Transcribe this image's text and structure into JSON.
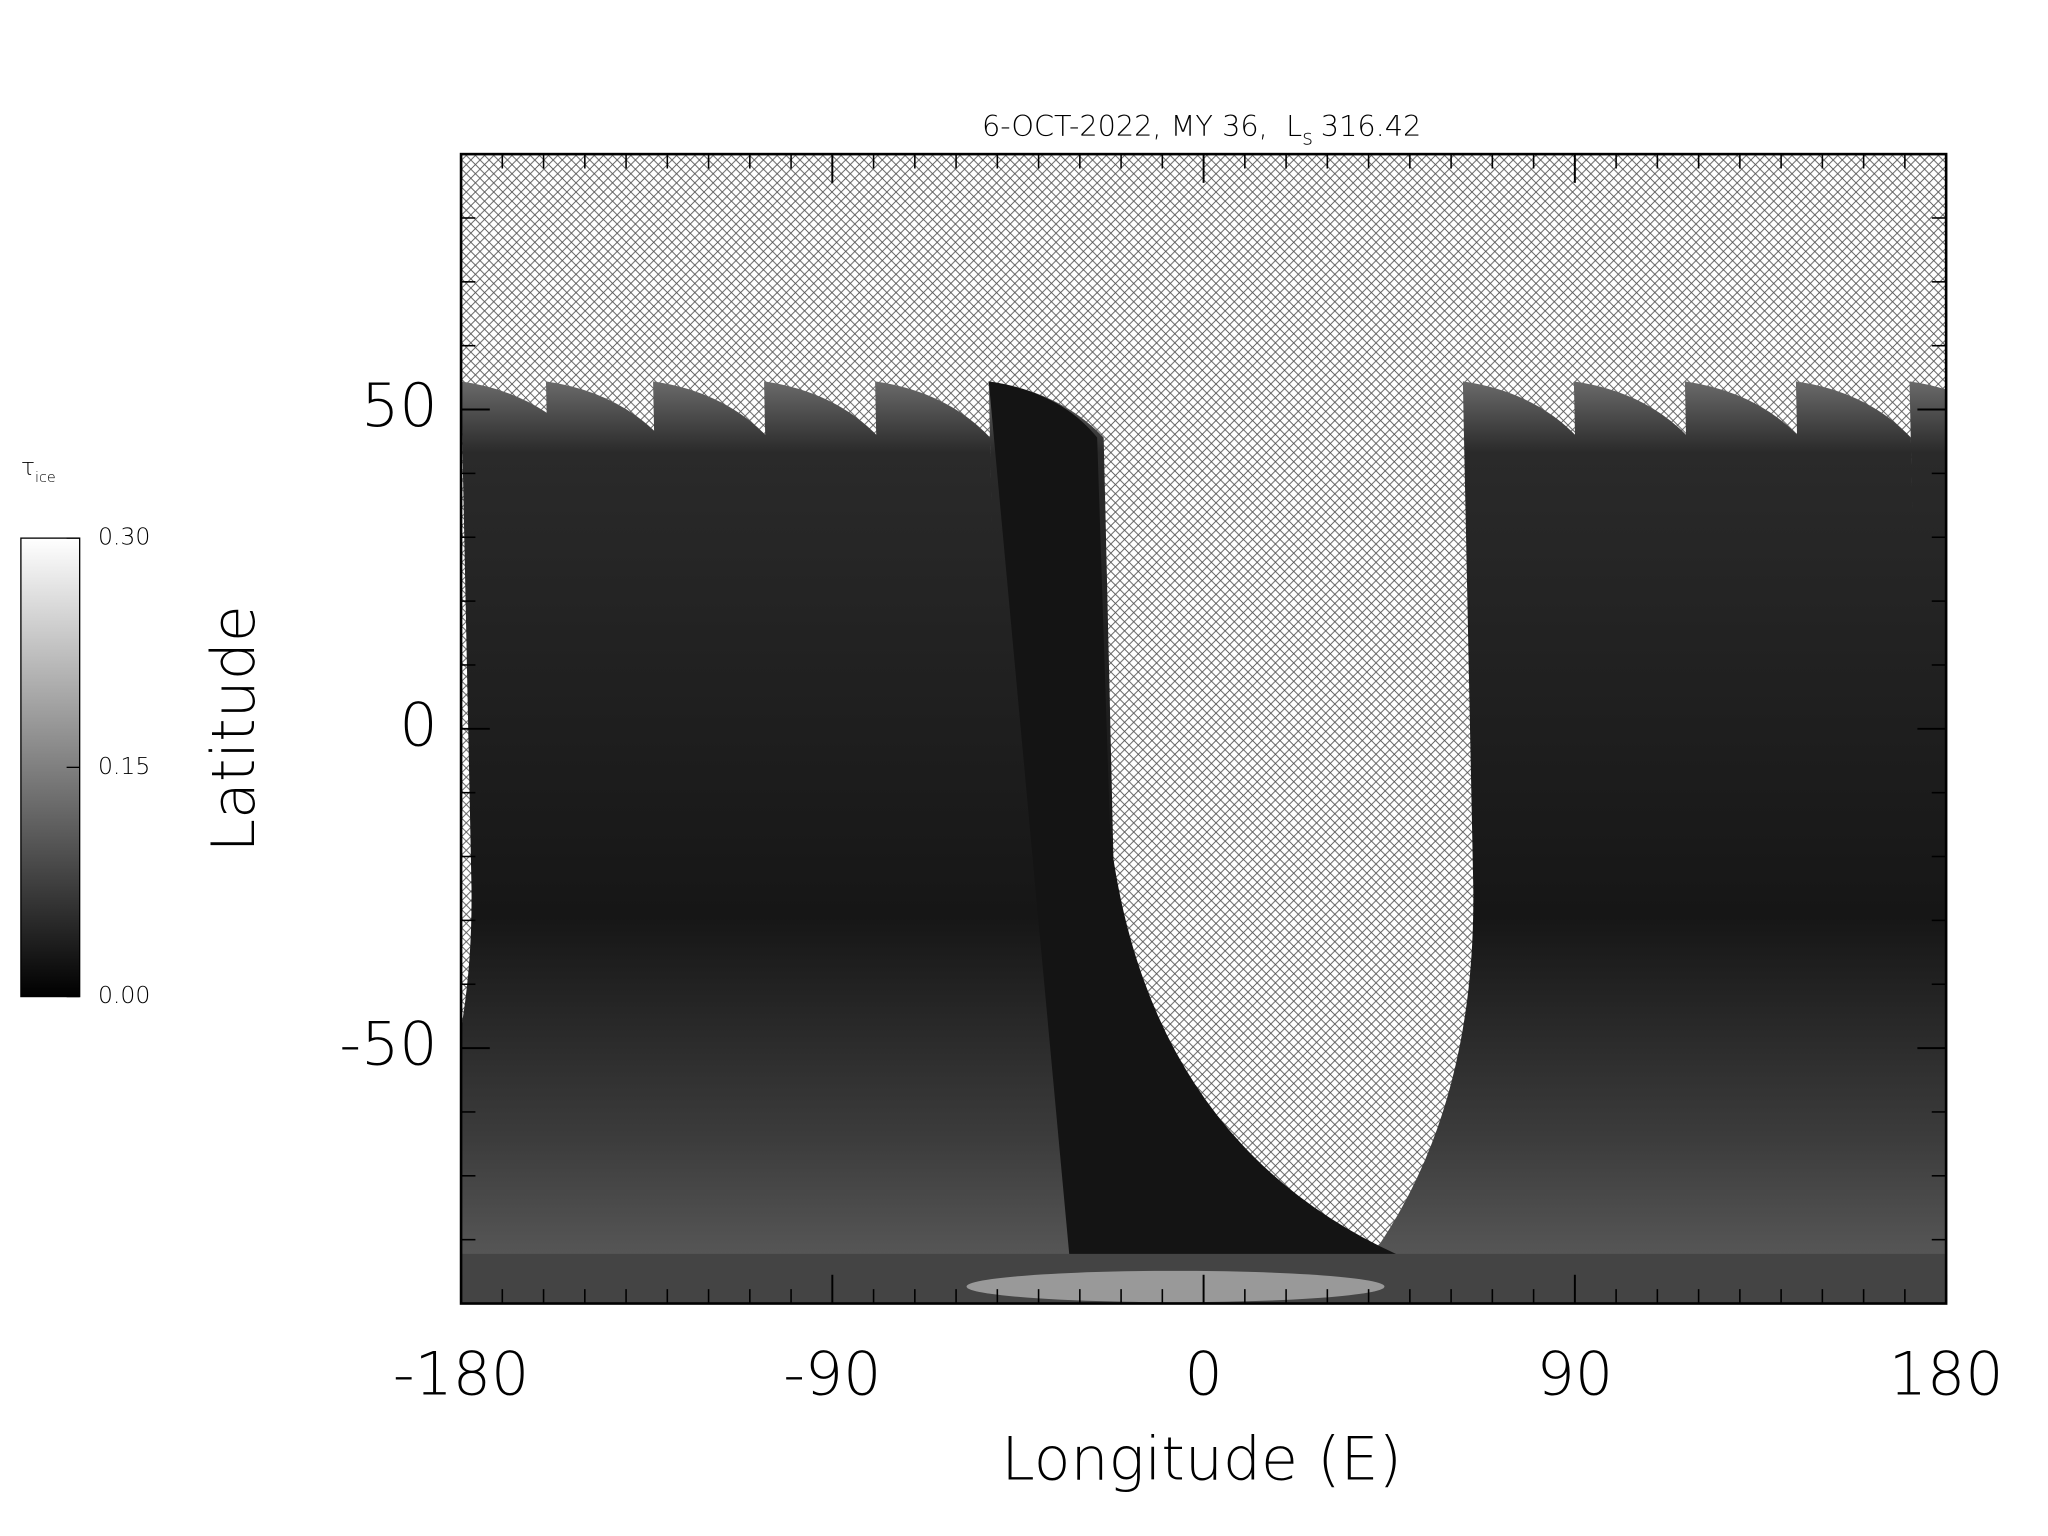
{
  "chart_data": {
    "type": "map",
    "title": "6-OCT-2022, MY 36,",
    "title_symbol": "L",
    "title_subscript": "s",
    "title_value": "316.42",
    "x_label": "Longitude (E)",
    "y_label": "Latitude",
    "xlim": [
      -180,
      180
    ],
    "xticks": [
      -180,
      -90,
      0,
      90,
      180
    ],
    "xminorticks": [
      -170,
      -160,
      -150,
      -140,
      -130,
      -120,
      -110,
      -100,
      -80,
      -70,
      -60,
      -50,
      -40,
      -30,
      -20,
      -10,
      10,
      20,
      30,
      40,
      50,
      60,
      70,
      80,
      100,
      110,
      120,
      130,
      140,
      150,
      160,
      170
    ],
    "ylim": [
      -90,
      90
    ],
    "yticks": [
      -50,
      0,
      50
    ],
    "yminorticks": [
      -80,
      -70,
      -60,
      -40,
      -30,
      -20,
      -10,
      10,
      20,
      30,
      40,
      60,
      70,
      80
    ],
    "colorbar": {
      "symbol": "τ",
      "subscript": "ice",
      "lim": [
        0,
        0.3
      ],
      "colors": [
        "#000000",
        "#ffffff"
      ],
      "ticks": [
        {
          "value": 0,
          "label": "0.00"
        },
        {
          "value": 0.15,
          "label": "0.15"
        },
        {
          "value": 0.3,
          "label": "0.30"
        }
      ]
    }
  }
}
